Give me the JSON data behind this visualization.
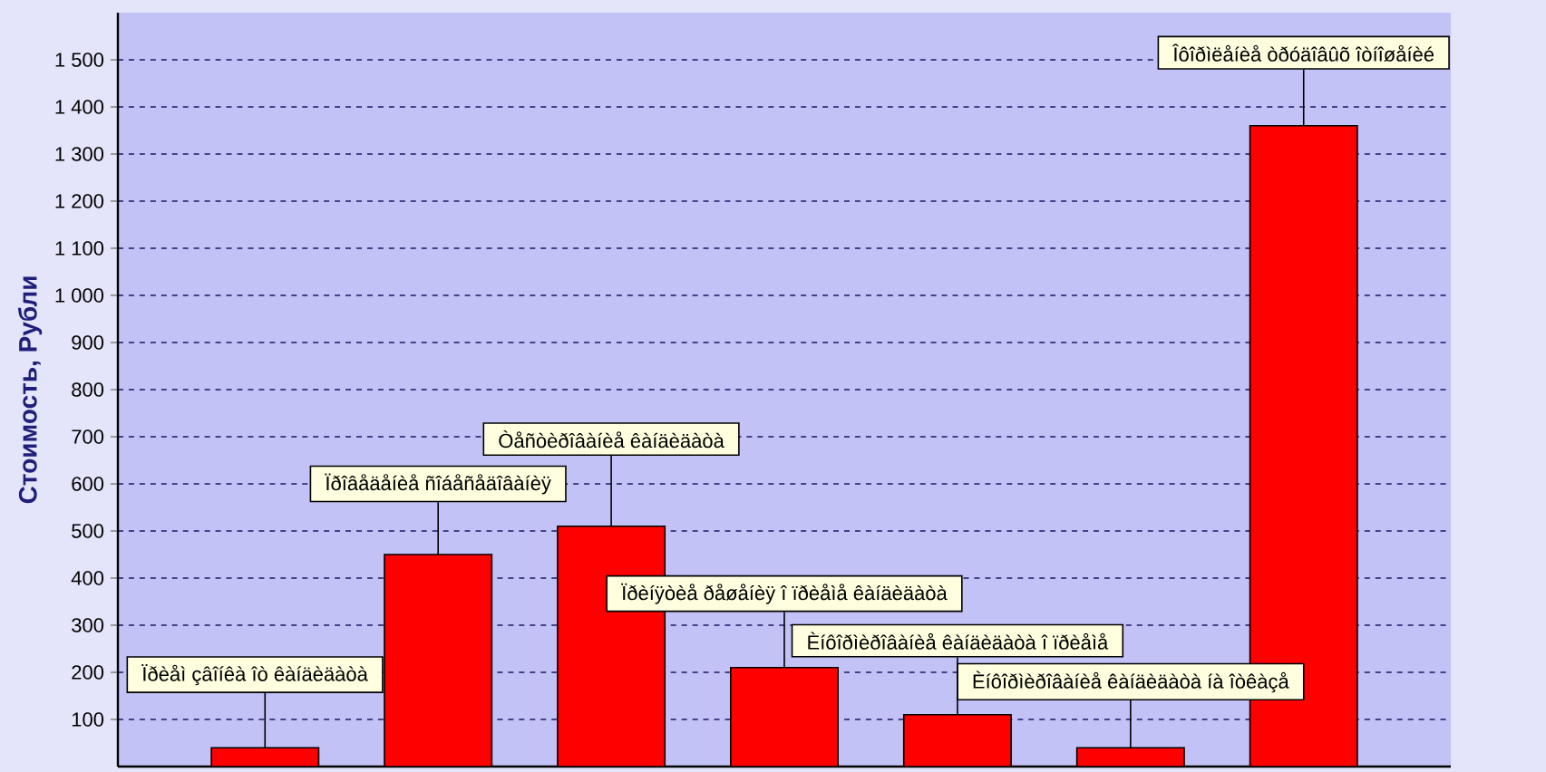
{
  "chart_data": {
    "type": "bar",
    "ylabel": "Стоимость, Рубли",
    "categories": [
      "Ïðèåì çâîíêà îò êàíäèäàòà",
      "Ïðîâåäåíèå ñîáåñåäîâàíèÿ",
      "Òåñòèðîâàíèå êàíäèäàòà",
      "Ïðèíÿòèå ðåøåíèÿ î ïðèåìå êàíäèäàòà",
      "Èíôîðìèðîâàíèå êàíäèäàòà î ïðèåìå",
      "Èíôîðìèðîâàíèå êàíäèäàòà íà îòêàçå",
      "Îôîðìëåíèå òðóäîâûõ îòíîøåíèé"
    ],
    "values": [
      40,
      450,
      510,
      210,
      110,
      40,
      1360
    ],
    "color": "#ff0000",
    "ylim": [
      0,
      1600
    ],
    "yticks": [
      100,
      200,
      300,
      400,
      500,
      600,
      700,
      800,
      900,
      {
        "value": 1000,
        "label": "1 000"
      },
      {
        "value": 1100,
        "label": "1 100"
      },
      {
        "value": 1200,
        "label": "1 200"
      },
      {
        "value": 1300,
        "label": "1 300"
      },
      {
        "value": 1400,
        "label": "1 400"
      },
      {
        "value": 1500,
        "label": "1 500"
      }
    ],
    "grid": true,
    "tick_labels": "y"
  }
}
